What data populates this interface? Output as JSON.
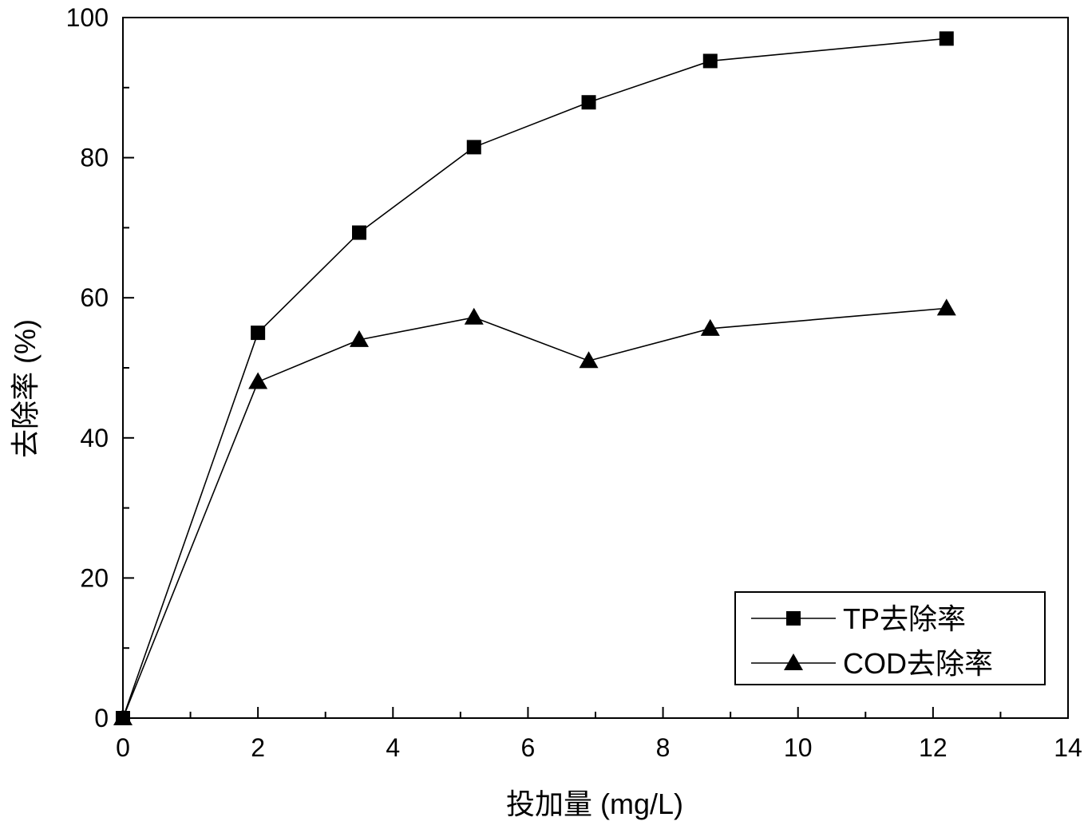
{
  "chart_data": {
    "type": "line",
    "title": "",
    "xlabel": "投加量 (mg/L)",
    "ylabel": "去除率 (%)",
    "xlim": [
      0,
      14
    ],
    "ylim": [
      0,
      100
    ],
    "xticks": [
      "0",
      "2",
      "4",
      "6",
      "8",
      "10",
      "12",
      "14"
    ],
    "yticks": [
      "0",
      "20",
      "40",
      "60",
      "80",
      "100"
    ],
    "grid": false,
    "legend_position": "bottom-right",
    "series": [
      {
        "name": "TP去除率",
        "marker": "square",
        "color": "#000000",
        "x": [
          0,
          2,
          3.5,
          5.2,
          6.9,
          8.7,
          12.2
        ],
        "y": [
          0,
          55,
          69.3,
          81.5,
          87.9,
          93.8,
          97
        ]
      },
      {
        "name": "COD去除率",
        "marker": "triangle",
        "color": "#000000",
        "x": [
          0,
          2,
          3.5,
          5.2,
          6.9,
          8.7,
          12.2
        ],
        "y": [
          0,
          48,
          54,
          57.2,
          51,
          55.6,
          58.5
        ]
      }
    ]
  }
}
